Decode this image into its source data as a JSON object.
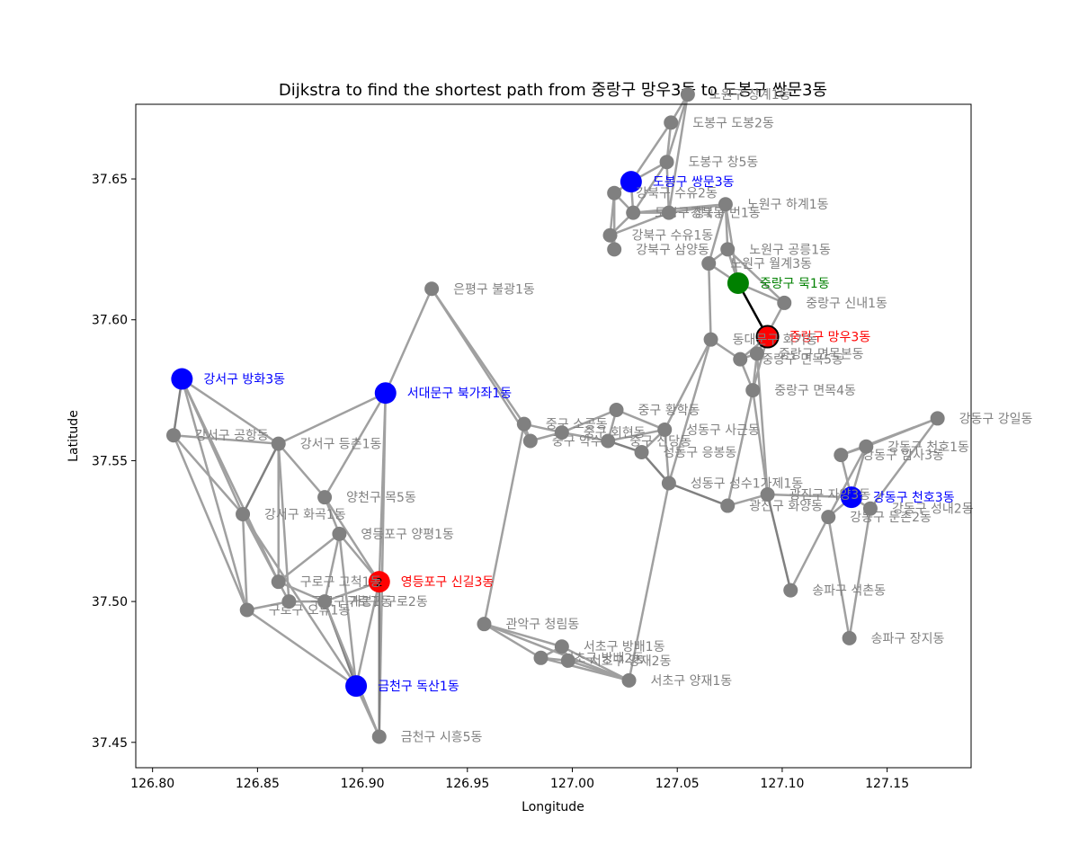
{
  "chart_data": {
    "type": "scatter",
    "title": "Dijkstra to find the shortest path from 중랑구 망우3동 to 도봉구 쌍문3동",
    "xlabel": "Longitude",
    "ylabel": "Latitude",
    "xlim": [
      126.792,
      127.19
    ],
    "ylim": [
      37.441,
      37.6765
    ],
    "xticks": [
      "126.80",
      "126.85",
      "126.90",
      "126.95",
      "127.00",
      "127.05",
      "127.10",
      "127.15"
    ],
    "yticks": [
      "37.45",
      "37.50",
      "37.55",
      "37.60",
      "37.65"
    ],
    "grid": false,
    "colors": {
      "node_default": "#808080",
      "start": "#ff0000",
      "visited": "#ff0000",
      "frontier": "#0000ff",
      "current": "#008000",
      "edge": "#a0a0a0",
      "edge_dark": "#808080",
      "path": "#000000"
    },
    "nodes": [
      {
        "id": "n1",
        "label": "노원구 상계1동",
        "x": 127.055,
        "y": 37.68,
        "state": "normal"
      },
      {
        "id": "n2",
        "label": "도봉구 도봉2동",
        "x": 127.047,
        "y": 37.67,
        "state": "normal"
      },
      {
        "id": "n3",
        "label": "도봉구 창5동",
        "x": 127.045,
        "y": 37.656,
        "state": "normal"
      },
      {
        "id": "n4",
        "label": "도봉구 쌍문3동",
        "x": 127.028,
        "y": 37.649,
        "state": "frontier"
      },
      {
        "id": "n5",
        "label": "강북구 수유2동",
        "x": 127.02,
        "y": 37.645,
        "state": "normal"
      },
      {
        "id": "n6",
        "label": "강북구 번1동",
        "x": 127.046,
        "y": 37.638,
        "state": "normal"
      },
      {
        "id": "n7",
        "label": "도봉구 창1동",
        "x": 127.029,
        "y": 37.638,
        "state": "normal"
      },
      {
        "id": "n8",
        "label": "노원구 하계1동",
        "x": 127.073,
        "y": 37.641,
        "state": "normal"
      },
      {
        "id": "n9",
        "label": "강북구 수유1동",
        "x": 127.018,
        "y": 37.63,
        "state": "normal"
      },
      {
        "id": "n10",
        "label": "강북구 삼양동",
        "x": 127.02,
        "y": 37.625,
        "state": "normal"
      },
      {
        "id": "n11",
        "label": "노원구 공릉1동",
        "x": 127.074,
        "y": 37.625,
        "state": "normal"
      },
      {
        "id": "n12",
        "label": "노원구 월계3동",
        "x": 127.065,
        "y": 37.62,
        "state": "normal"
      },
      {
        "id": "n13",
        "label": "중랑구 묵1동",
        "x": 127.079,
        "y": 37.613,
        "state": "current"
      },
      {
        "id": "n14",
        "label": "중랑구 신내1동",
        "x": 127.101,
        "y": 37.606,
        "state": "normal"
      },
      {
        "id": "n15",
        "label": "중랑구 망우3동",
        "x": 127.093,
        "y": 37.594,
        "state": "start"
      },
      {
        "id": "n16",
        "label": "동대문구 회기동",
        "x": 127.066,
        "y": 37.593,
        "state": "normal"
      },
      {
        "id": "n17",
        "label": "중랑구 면목본동",
        "x": 127.088,
        "y": 37.588,
        "state": "normal"
      },
      {
        "id": "n18",
        "label": "중랑구 면목5동",
        "x": 127.08,
        "y": 37.586,
        "state": "normal"
      },
      {
        "id": "n19",
        "label": "중랑구 면목4동",
        "x": 127.086,
        "y": 37.575,
        "state": "normal"
      },
      {
        "id": "n20",
        "label": "은평구 불광1동",
        "x": 126.933,
        "y": 37.611,
        "state": "normal"
      },
      {
        "id": "n21",
        "label": "강서구 방화3동",
        "x": 126.814,
        "y": 37.579,
        "state": "frontier"
      },
      {
        "id": "n22",
        "label": "서대문구 북가좌1동",
        "x": 126.911,
        "y": 37.574,
        "state": "frontier"
      },
      {
        "id": "n23",
        "label": "중구 황학동",
        "x": 127.021,
        "y": 37.568,
        "state": "normal"
      },
      {
        "id": "n24",
        "label": "강동구 강일동",
        "x": 127.174,
        "y": 37.565,
        "state": "normal"
      },
      {
        "id": "n25",
        "label": "중구 소공동",
        "x": 126.977,
        "y": 37.563,
        "state": "normal"
      },
      {
        "id": "n26",
        "label": "성동구 사근동",
        "x": 127.044,
        "y": 37.561,
        "state": "normal"
      },
      {
        "id": "n27",
        "label": "중구 회현동",
        "x": 126.995,
        "y": 37.56,
        "state": "normal"
      },
      {
        "id": "n28",
        "label": "강서구 공항동",
        "x": 126.81,
        "y": 37.559,
        "state": "normal"
      },
      {
        "id": "n29",
        "label": "중구 약수동",
        "x": 126.98,
        "y": 37.557,
        "state": "normal"
      },
      {
        "id": "n30",
        "label": "중구 신당동",
        "x": 127.017,
        "y": 37.557,
        "state": "normal"
      },
      {
        "id": "n31",
        "label": "강서구 등촌1동",
        "x": 126.86,
        "y": 37.556,
        "state": "normal"
      },
      {
        "id": "n32",
        "label": "강동구 천호1동",
        "x": 127.14,
        "y": 37.555,
        "state": "normal"
      },
      {
        "id": "n33",
        "label": "성동구 응봉동",
        "x": 127.033,
        "y": 37.553,
        "state": "normal"
      },
      {
        "id": "n34",
        "label": "강동구 암사3동",
        "x": 127.128,
        "y": 37.552,
        "state": "normal"
      },
      {
        "id": "n35",
        "label": "성동구 성수1가제1동",
        "x": 127.046,
        "y": 37.542,
        "state": "normal"
      },
      {
        "id": "n36",
        "label": "양천구 목5동",
        "x": 126.882,
        "y": 37.537,
        "state": "normal"
      },
      {
        "id": "n37",
        "label": "광진구 자양3동",
        "x": 127.093,
        "y": 37.538,
        "state": "normal"
      },
      {
        "id": "n38",
        "label": "강동구 천호3동",
        "x": 127.133,
        "y": 37.537,
        "state": "frontier"
      },
      {
        "id": "n39",
        "label": "광진구 화양동",
        "x": 127.074,
        "y": 37.534,
        "state": "normal"
      },
      {
        "id": "n40",
        "label": "강동구 성내2동",
        "x": 127.142,
        "y": 37.533,
        "state": "normal"
      },
      {
        "id": "n41",
        "label": "강동구 둔촌2동",
        "x": 127.122,
        "y": 37.53,
        "state": "normal"
      },
      {
        "id": "n42",
        "label": "강서구 화곡1동",
        "x": 126.843,
        "y": 37.531,
        "state": "normal"
      },
      {
        "id": "n43",
        "label": "영등포구 양평1동",
        "x": 126.889,
        "y": 37.524,
        "state": "normal"
      },
      {
        "id": "n44",
        "label": "영등포구 신길3동",
        "x": 126.908,
        "y": 37.507,
        "state": "visited",
        "order": "2"
      },
      {
        "id": "n45",
        "label": "구로구 고척1동",
        "x": 126.86,
        "y": 37.507,
        "state": "normal"
      },
      {
        "id": "n46",
        "label": "송파구 석촌동",
        "x": 127.104,
        "y": 37.504,
        "state": "normal"
      },
      {
        "id": "n47",
        "label": "구로구 구로2동",
        "x": 126.882,
        "y": 37.5,
        "state": "normal"
      },
      {
        "id": "n48",
        "label": "구로구 개봉1동",
        "x": 126.865,
        "y": 37.5,
        "state": "normal"
      },
      {
        "id": "n49",
        "label": "구로구 오류1동",
        "x": 126.845,
        "y": 37.497,
        "state": "normal"
      },
      {
        "id": "n50",
        "label": "관악구 청림동",
        "x": 126.958,
        "y": 37.492,
        "state": "normal"
      },
      {
        "id": "n51",
        "label": "송파구 장지동",
        "x": 127.132,
        "y": 37.487,
        "state": "normal"
      },
      {
        "id": "n52",
        "label": "서초구 방배1동",
        "x": 126.995,
        "y": 37.484,
        "state": "normal"
      },
      {
        "id": "n53",
        "label": "서초구 방배2동",
        "x": 126.985,
        "y": 37.48,
        "state": "normal"
      },
      {
        "id": "n54",
        "label": "서초구 양재2동",
        "x": 126.998,
        "y": 37.479,
        "state": "normal"
      },
      {
        "id": "n55",
        "label": "서초구 양재1동",
        "x": 127.027,
        "y": 37.472,
        "state": "normal"
      },
      {
        "id": "n56",
        "label": "금천구 독산1동",
        "x": 126.897,
        "y": 37.47,
        "state": "frontier"
      },
      {
        "id": "n57",
        "label": "금천구 시흥5동",
        "x": 126.908,
        "y": 37.452,
        "state": "normal"
      }
    ],
    "edges": [
      [
        "n1",
        "n2"
      ],
      [
        "n1",
        "n3"
      ],
      [
        "n1",
        "n6"
      ],
      [
        "n2",
        "n3"
      ],
      [
        "n2",
        "n4"
      ],
      [
        "n3",
        "n4"
      ],
      [
        "n3",
        "n6"
      ],
      [
        "n3",
        "n7"
      ],
      [
        "n4",
        "n5"
      ],
      [
        "n4",
        "n7"
      ],
      [
        "n5",
        "n7"
      ],
      [
        "n5",
        "n9"
      ],
      [
        "n5",
        "n10"
      ],
      [
        "n7",
        "n9"
      ],
      [
        "n7",
        "n6"
      ],
      [
        "n7",
        "n8"
      ],
      [
        "n9",
        "n10"
      ],
      [
        "n9",
        "n6"
      ],
      [
        "n6",
        "n8"
      ],
      [
        "n8",
        "n11"
      ],
      [
        "n8",
        "n12"
      ],
      [
        "n8",
        "n13"
      ],
      [
        "n11",
        "n12"
      ],
      [
        "n11",
        "n13"
      ],
      [
        "n11",
        "n14"
      ],
      [
        "n12",
        "n13"
      ],
      [
        "n12",
        "n16"
      ],
      [
        "n13",
        "n14"
      ],
      [
        "n14",
        "n17"
      ],
      [
        "n15",
        "n17"
      ],
      [
        "n15",
        "n18"
      ],
      [
        "n15",
        "n19"
      ],
      [
        "n16",
        "n18"
      ],
      [
        "n16",
        "n26"
      ],
      [
        "n17",
        "n18"
      ],
      [
        "n17",
        "n19"
      ],
      [
        "n18",
        "n19"
      ],
      [
        "n19",
        "n37"
      ],
      [
        "n17",
        "n37"
      ],
      [
        "n16",
        "n35"
      ],
      [
        "n20",
        "n22"
      ],
      [
        "n20",
        "n25"
      ],
      [
        "n20",
        "n29"
      ],
      [
        "n21",
        "n28"
      ],
      [
        "n21",
        "n31"
      ],
      [
        "n21",
        "n42"
      ],
      [
        "n21",
        "n49"
      ],
      [
        "n21",
        "n45"
      ],
      [
        "n22",
        "n31"
      ],
      [
        "n22",
        "n36"
      ],
      [
        "n22",
        "n44"
      ],
      [
        "n22",
        "n57"
      ],
      [
        "n23",
        "n26"
      ],
      [
        "n23",
        "n30"
      ],
      [
        "n23",
        "n27"
      ],
      [
        "n25",
        "n27"
      ],
      [
        "n25",
        "n29"
      ],
      [
        "n25",
        "n50"
      ],
      [
        "n27",
        "n29"
      ],
      [
        "n27",
        "n30"
      ],
      [
        "n30",
        "n33"
      ],
      [
        "n30",
        "n26"
      ],
      [
        "n26",
        "n33"
      ],
      [
        "n26",
        "n35"
      ],
      [
        "n33",
        "n35"
      ],
      [
        "n35",
        "n39"
      ],
      [
        "n35",
        "n55"
      ],
      [
        "n39",
        "n37"
      ],
      [
        "n39",
        "n19"
      ],
      [
        "n37",
        "n38"
      ],
      [
        "n37",
        "n46"
      ],
      [
        "n38",
        "n34"
      ],
      [
        "n38",
        "n32"
      ],
      [
        "n38",
        "n40"
      ],
      [
        "n38",
        "n41"
      ],
      [
        "n34",
        "n32"
      ],
      [
        "n32",
        "n24"
      ],
      [
        "n34",
        "n24"
      ],
      [
        "n40",
        "n24"
      ],
      [
        "n41",
        "n46"
      ],
      [
        "n41",
        "n51"
      ],
      [
        "n40",
        "n51"
      ],
      [
        "n41",
        "n32"
      ],
      [
        "n28",
        "n31"
      ],
      [
        "n28",
        "n42"
      ],
      [
        "n28",
        "n49"
      ],
      [
        "n31",
        "n42"
      ],
      [
        "n31",
        "n36"
      ],
      [
        "n31",
        "n45"
      ],
      [
        "n31",
        "n48"
      ],
      [
        "n42",
        "n45"
      ],
      [
        "n42",
        "n49"
      ],
      [
        "n42",
        "n56"
      ],
      [
        "n36",
        "n43"
      ],
      [
        "n36",
        "n44"
      ],
      [
        "n43",
        "n44"
      ],
      [
        "n43",
        "n45"
      ],
      [
        "n43",
        "n47"
      ],
      [
        "n43",
        "n56"
      ],
      [
        "n44",
        "n47"
      ],
      [
        "n44",
        "n56"
      ],
      [
        "n44",
        "n57"
      ],
      [
        "n45",
        "n48"
      ],
      [
        "n45",
        "n47"
      ],
      [
        "n48",
        "n49"
      ],
      [
        "n48",
        "n47"
      ],
      [
        "n47",
        "n56"
      ],
      [
        "n47",
        "n57"
      ],
      [
        "n56",
        "n57"
      ],
      [
        "n49",
        "n56"
      ],
      [
        "n50",
        "n52"
      ],
      [
        "n50",
        "n53"
      ],
      [
        "n50",
        "n55"
      ],
      [
        "n52",
        "n53"
      ],
      [
        "n52",
        "n54"
      ],
      [
        "n53",
        "n54"
      ],
      [
        "n54",
        "n55"
      ],
      [
        "n52",
        "n55"
      ],
      [
        "n53",
        "n55"
      ]
    ],
    "dark_edges": [
      [
        "n21",
        "n28"
      ],
      [
        "n31",
        "n42"
      ],
      [
        "n44",
        "n57"
      ],
      [
        "n47",
        "n56"
      ],
      [
        "n30",
        "n33"
      ],
      [
        "n33",
        "n35"
      ],
      [
        "n35",
        "n39"
      ],
      [
        "n37",
        "n46"
      ]
    ],
    "path_edges": [
      [
        "n13",
        "n15"
      ]
    ]
  }
}
